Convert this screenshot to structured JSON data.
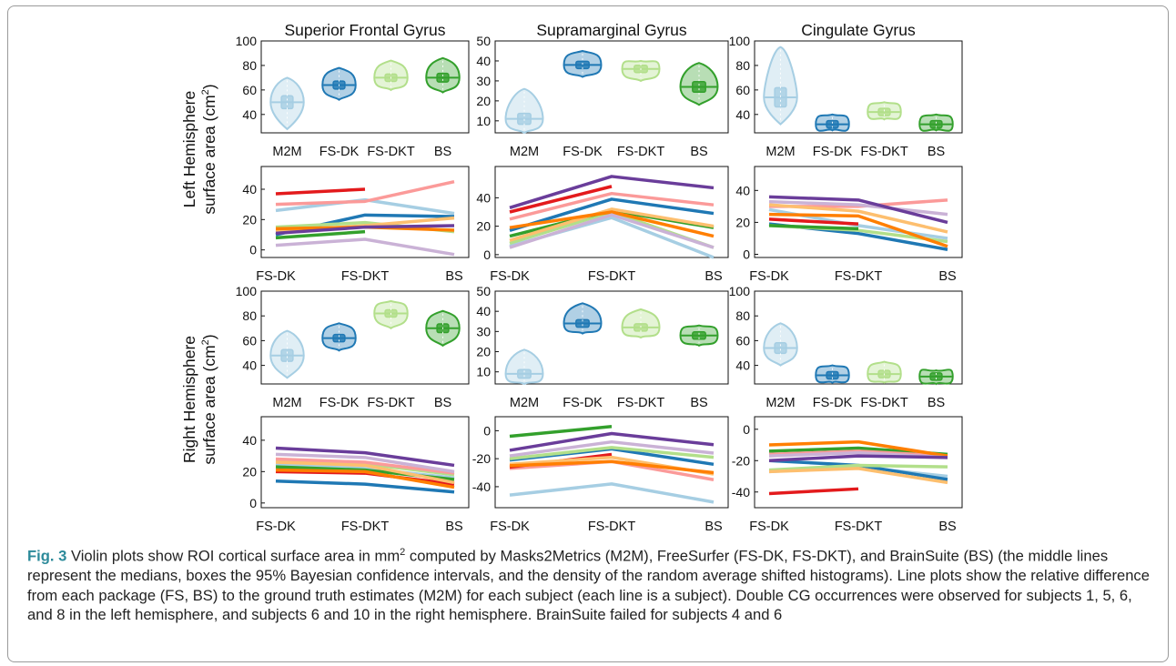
{
  "figure": {
    "columns": [
      "Superior Frontal Gyrus",
      "Supramarginal Gyrus",
      "Cingulate Gyrus"
    ],
    "row_labels": [
      [
        "Left Hemisphere",
        "surface area (cm",
        "2",
        ")"
      ],
      [
        "Right Hemisphere",
        "surface area (cm",
        "2",
        ")"
      ]
    ],
    "colors": {
      "M2M": "#a6cee3",
      "FS-DK": "#1f78b4",
      "FS-DKT": "#b2df8a",
      "BS": "#33a02c",
      "subjects": [
        "#a6cee3",
        "#1f78b4",
        "#b2df8a",
        "#33a02c",
        "#fb9a99",
        "#e31a1c",
        "#fdbf6f",
        "#ff7f00",
        "#cab2d6",
        "#6a3d9a"
      ]
    }
  },
  "caption": {
    "label": "Fig. 3",
    "text_before_sup": " Violin plots show ROI cortical surface area in mm",
    "sup": "2",
    "text_after_sup": " computed by Masks2Metrics (M2M), FreeSurfer (FS-DK, FS-DKT), and BrainSuite (BS) (the middle lines represent the medians, boxes the 95% Bayesian confidence intervals, and the density of the random average shifted histograms). Line plots show the relative difference from each package (FS, BS) to the ground truth estimates (M2M) for each subject (each line is a subject). Double CG occurrences were observed for subjects 1, 5, 6, and 8 in the left hemisphere, and subjects 6 and 10 in the right hemisphere. BrainSuite failed for subjects 4 and 6"
  },
  "chart_data": [
    {
      "id": "lh-sfg-violin",
      "type": "violin",
      "hemisphere": "Left",
      "roi": "Superior Frontal Gyrus",
      "categories": [
        "M2M",
        "FS-DK",
        "FS-DKT",
        "BS"
      ],
      "ylim": [
        25,
        100
      ],
      "yticks": [
        40,
        60,
        80,
        100
      ],
      "series": [
        {
          "name": "M2M",
          "median": 50,
          "range": [
            28,
            70
          ]
        },
        {
          "name": "FS-DK",
          "median": 64,
          "range": [
            52,
            78
          ]
        },
        {
          "name": "FS-DKT",
          "median": 70,
          "range": [
            60,
            84
          ]
        },
        {
          "name": "BS",
          "median": 70,
          "range": [
            58,
            86
          ]
        }
      ]
    },
    {
      "id": "lh-smg-violin",
      "type": "violin",
      "hemisphere": "Left",
      "roi": "Supramarginal Gyrus",
      "categories": [
        "M2M",
        "FS-DK",
        "FS-DKT",
        "BS"
      ],
      "ylim": [
        4,
        50
      ],
      "yticks": [
        10,
        20,
        30,
        40,
        50
      ],
      "series": [
        {
          "name": "M2M",
          "median": 11,
          "range": [
            4,
            26
          ]
        },
        {
          "name": "FS-DK",
          "median": 38,
          "range": [
            32,
            45
          ]
        },
        {
          "name": "FS-DKT",
          "median": 36,
          "range": [
            30,
            40
          ]
        },
        {
          "name": "BS",
          "median": 27,
          "range": [
            18,
            39
          ]
        }
      ]
    },
    {
      "id": "lh-cg-violin",
      "type": "violin",
      "hemisphere": "Left",
      "roi": "Cingulate Gyrus",
      "categories": [
        "M2M",
        "FS-DK",
        "FS-DKT",
        "BS"
      ],
      "ylim": [
        25,
        100
      ],
      "yticks": [
        40,
        60,
        80,
        100
      ],
      "series": [
        {
          "name": "M2M",
          "median": 54,
          "range": [
            32,
            95
          ]
        },
        {
          "name": "FS-DK",
          "median": 32,
          "range": [
            27,
            40
          ]
        },
        {
          "name": "FS-DKT",
          "median": 42,
          "range": [
            36,
            50
          ]
        },
        {
          "name": "BS",
          "median": 32,
          "range": [
            27,
            40
          ]
        }
      ]
    },
    {
      "id": "lh-sfg-lines",
      "type": "line",
      "hemisphere": "Left",
      "roi": "Superior Frontal Gyrus",
      "categories": [
        "FS-DK",
        "FS-DKT",
        "BS"
      ],
      "ylim": [
        -5,
        55
      ],
      "yticks": [
        0,
        20,
        40
      ],
      "series": [
        {
          "values": [
            26,
            33,
            24
          ]
        },
        {
          "values": [
            10,
            23,
            22
          ]
        },
        {
          "values": [
            15,
            18,
            12
          ]
        },
        {
          "values": [
            8,
            12,
            null
          ]
        },
        {
          "values": [
            30,
            32,
            45
          ]
        },
        {
          "values": [
            37,
            40,
            null
          ]
        },
        {
          "values": [
            12,
            16,
            21
          ]
        },
        {
          "values": [
            14,
            15,
            13
          ]
        },
        {
          "values": [
            3,
            7,
            -3
          ]
        },
        {
          "values": [
            11,
            15,
            16
          ]
        }
      ]
    },
    {
      "id": "lh-smg-lines",
      "type": "line",
      "hemisphere": "Left",
      "roi": "Supramarginal Gyrus",
      "categories": [
        "FS-DK",
        "FS-DKT",
        "BS"
      ],
      "ylim": [
        -2,
        62
      ],
      "yticks": [
        0,
        20,
        40
      ],
      "series": [
        {
          "values": [
            6,
            26,
            -2
          ]
        },
        {
          "values": [
            17,
            39,
            29
          ]
        },
        {
          "values": [
            8,
            30,
            5
          ]
        },
        {
          "values": [
            13,
            31,
            19
          ]
        },
        {
          "values": [
            25,
            43,
            35
          ]
        },
        {
          "values": [
            30,
            48,
            null
          ]
        },
        {
          "values": [
            10,
            32,
            20
          ]
        },
        {
          "values": [
            19,
            30,
            13
          ]
        },
        {
          "values": [
            5,
            28,
            5
          ]
        },
        {
          "values": [
            33,
            55,
            47
          ]
        }
      ]
    },
    {
      "id": "lh-cg-lines",
      "type": "line",
      "hemisphere": "Left",
      "roi": "Cingulate Gyrus",
      "categories": [
        "FS-DK",
        "FS-DKT",
        "BS"
      ],
      "ylim": [
        -2,
        55
      ],
      "yticks": [
        0,
        20,
        40
      ],
      "series": [
        {
          "values": [
            28,
            18,
            10
          ]
        },
        {
          "values": [
            19,
            13,
            3
          ]
        },
        {
          "values": [
            18,
            15,
            8
          ]
        },
        {
          "values": [
            18,
            16,
            null
          ]
        },
        {
          "values": [
            30,
            30,
            34
          ]
        },
        {
          "values": [
            22,
            19,
            null
          ]
        },
        {
          "values": [
            31,
            27,
            14
          ]
        },
        {
          "values": [
            25,
            24,
            5
          ]
        },
        {
          "values": [
            33,
            31,
            25
          ]
        },
        {
          "values": [
            36,
            34,
            20
          ]
        }
      ]
    },
    {
      "id": "rh-sfg-violin",
      "type": "violin",
      "hemisphere": "Right",
      "roi": "Superior Frontal Gyrus",
      "categories": [
        "M2M",
        "FS-DK",
        "FS-DKT",
        "BS"
      ],
      "ylim": [
        25,
        100
      ],
      "yticks": [
        40,
        60,
        80,
        100
      ],
      "series": [
        {
          "name": "M2M",
          "median": 48,
          "range": [
            30,
            68
          ]
        },
        {
          "name": "FS-DK",
          "median": 62,
          "range": [
            52,
            74
          ]
        },
        {
          "name": "FS-DKT",
          "median": 82,
          "range": [
            70,
            92
          ]
        },
        {
          "name": "BS",
          "median": 70,
          "range": [
            56,
            84
          ]
        }
      ]
    },
    {
      "id": "rh-smg-violin",
      "type": "violin",
      "hemisphere": "Right",
      "roi": "Supramarginal Gyrus",
      "categories": [
        "M2M",
        "FS-DK",
        "FS-DKT",
        "BS"
      ],
      "ylim": [
        4,
        50
      ],
      "yticks": [
        10,
        20,
        30,
        40,
        50
      ],
      "series": [
        {
          "name": "M2M",
          "median": 9,
          "range": [
            4,
            21
          ]
        },
        {
          "name": "FS-DK",
          "median": 34,
          "range": [
            29,
            44
          ]
        },
        {
          "name": "FS-DKT",
          "median": 32,
          "range": [
            27,
            41
          ]
        },
        {
          "name": "BS",
          "median": 28,
          "range": [
            23,
            33
          ]
        }
      ]
    },
    {
      "id": "rh-cg-violin",
      "type": "violin",
      "hemisphere": "Right",
      "roi": "Cingulate Gyrus",
      "categories": [
        "M2M",
        "FS-DK",
        "FS-DKT",
        "BS"
      ],
      "ylim": [
        25,
        100
      ],
      "yticks": [
        40,
        60,
        80,
        100
      ],
      "series": [
        {
          "name": "M2M",
          "median": 54,
          "range": [
            40,
            74
          ]
        },
        {
          "name": "FS-DK",
          "median": 32,
          "range": [
            26,
            40
          ]
        },
        {
          "name": "FS-DKT",
          "median": 33,
          "range": [
            26,
            43
          ]
        },
        {
          "name": "BS",
          "median": 31,
          "range": [
            25,
            36
          ]
        }
      ]
    },
    {
      "id": "rh-sfg-lines",
      "type": "line",
      "hemisphere": "Right",
      "roi": "Superior Frontal Gyrus",
      "categories": [
        "FS-DK",
        "FS-DKT",
        "BS"
      ],
      "ylim": [
        -3,
        55
      ],
      "yticks": [
        0,
        20,
        40
      ],
      "series": [
        {
          "values": [
            25,
            22,
            16
          ]
        },
        {
          "values": [
            14,
            12,
            7
          ]
        },
        {
          "values": [
            27,
            25,
            18
          ]
        },
        {
          "values": [
            23,
            21,
            15
          ]
        },
        {
          "values": [
            28,
            26,
            19
          ]
        },
        {
          "values": [
            20,
            19,
            12
          ]
        },
        {
          "values": [
            26,
            24,
            13
          ]
        },
        {
          "values": [
            21,
            20,
            10
          ]
        },
        {
          "values": [
            31,
            29,
            20
          ]
        },
        {
          "values": [
            35,
            32,
            24
          ]
        }
      ]
    },
    {
      "id": "rh-smg-lines",
      "type": "line",
      "hemisphere": "Right",
      "roi": "Supramarginal Gyrus",
      "categories": [
        "FS-DK",
        "FS-DKT",
        "BS"
      ],
      "ylim": [
        -55,
        10
      ],
      "yticks": [
        -40,
        -20,
        0
      ],
      "series": [
        {
          "values": [
            -46,
            -38,
            -51
          ]
        },
        {
          "values": [
            -21,
            -13,
            -24
          ]
        },
        {
          "values": [
            -20,
            -12,
            -19
          ]
        },
        {
          "values": [
            -4,
            3,
            null
          ]
        },
        {
          "values": [
            -27,
            -22,
            -35
          ]
        },
        {
          "values": [
            -26,
            -17,
            null
          ]
        },
        {
          "values": [
            -24,
            -19,
            -31
          ]
        },
        {
          "values": [
            -25,
            -22,
            -30
          ]
        },
        {
          "values": [
            -18,
            -8,
            -16
          ]
        },
        {
          "values": [
            -14,
            -2,
            -10
          ]
        }
      ]
    },
    {
      "id": "rh-cg-lines",
      "type": "line",
      "hemisphere": "Right",
      "roi": "Cingulate Gyrus",
      "categories": [
        "FS-DK",
        "FS-DKT",
        "BS"
      ],
      "ylim": [
        -50,
        8
      ],
      "yticks": [
        -40,
        -20,
        0
      ],
      "series": [
        {
          "values": [
            -27,
            -24,
            -30
          ]
        },
        {
          "values": [
            -20,
            -23,
            -32
          ]
        },
        {
          "values": [
            -26,
            -23,
            -24
          ]
        },
        {
          "values": [
            -14,
            -12,
            -16
          ]
        },
        {
          "values": [
            -16,
            -14,
            -17
          ]
        },
        {
          "values": [
            -41,
            -38,
            null
          ]
        },
        {
          "values": [
            -27,
            -25,
            -34
          ]
        },
        {
          "values": [
            -10,
            -8,
            -17
          ]
        },
        {
          "values": [
            -17,
            -15,
            -18
          ]
        },
        {
          "values": [
            -20,
            -17,
            -18
          ]
        }
      ]
    }
  ]
}
